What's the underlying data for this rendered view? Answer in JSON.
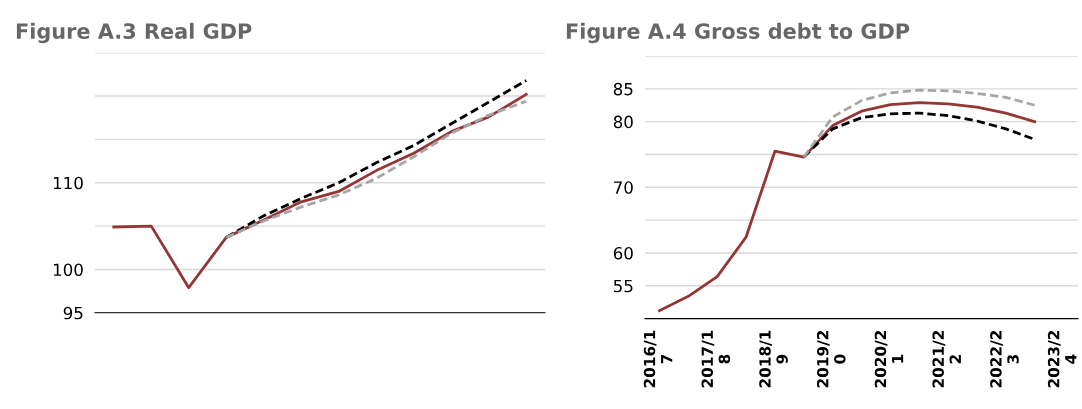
{
  "chart_data": [
    {
      "type": "line",
      "title": "Figure A.3 Real GDP",
      "categories": [
        null,
        null,
        null,
        null,
        null,
        null,
        null,
        null,
        null,
        null,
        null,
        null
      ],
      "series": [
        {
          "color": "#943634",
          "line_style": "solid",
          "values": [
            104.9,
            105.0,
            97.9,
            103.7,
            105.7,
            107.8,
            109.0,
            111.4,
            113.4,
            115.9,
            117.6,
            120.2
          ]
        },
        {
          "color": "#000000",
          "line_style": "dashed",
          "values": [
            null,
            null,
            null,
            103.7,
            106.2,
            108.2,
            110.0,
            112.3,
            114.3,
            116.8,
            119.3,
            121.8
          ]
        },
        {
          "color": "#a6a6a6",
          "line_style": "dashed",
          "values": [
            null,
            null,
            null,
            103.7,
            105.6,
            107.2,
            108.6,
            110.5,
            113.0,
            115.7,
            117.8,
            119.4
          ]
        }
      ],
      "ylim": [
        95,
        125
      ],
      "yticks": [
        95,
        100,
        {
          "value": 105,
          "label": null
        },
        110,
        {
          "value": 115,
          "label": null
        },
        {
          "value": 120,
          "label": null
        },
        {
          "value": 125,
          "label": null
        }
      ],
      "grid": "y"
    },
    {
      "type": "line",
      "title": "Figure A.4 Gross debt to GDP",
      "categories": [
        "2016/17",
        null,
        "2017/18",
        null,
        "2018/19",
        null,
        "2019/20",
        null,
        "2020/21",
        null,
        "2021/22",
        null,
        "2022/23",
        null,
        "2023/24"
      ],
      "series": [
        {
          "color": "#000000",
          "line_style": "dashed",
          "values": [
            null,
            null,
            null,
            null,
            null,
            74.6,
            78.9,
            80.6,
            81.2,
            81.3,
            80.9,
            80.1,
            78.9,
            77.3,
            null
          ]
        },
        {
          "color": "#a6a6a6",
          "line_style": "dashed",
          "values": [
            null,
            null,
            null,
            null,
            null,
            74.6,
            80.7,
            83.2,
            84.4,
            84.8,
            84.7,
            84.3,
            83.7,
            82.5,
            null
          ]
        },
        {
          "color": "#943634",
          "line_style": "solid",
          "values": [
            51.2,
            53.4,
            56.4,
            62.4,
            75.5,
            74.6,
            79.4,
            81.6,
            82.6,
            82.9,
            82.7,
            82.2,
            81.3,
            80.0,
            null
          ]
        }
      ],
      "ylim": [
        50,
        90
      ],
      "yticks": [
        {
          "value": 50,
          "label": null
        },
        55,
        60,
        {
          "value": 65,
          "label": null
        },
        70,
        {
          "value": 75,
          "label": null
        },
        80,
        85,
        {
          "value": 90,
          "label": null
        }
      ],
      "grid": "y"
    }
  ]
}
